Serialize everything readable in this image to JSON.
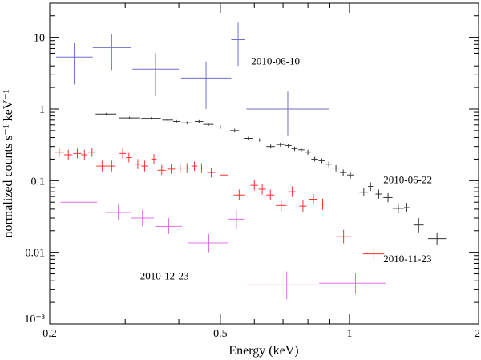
{
  "chart_data": {
    "type": "scatter",
    "xscale": "log",
    "yscale": "log",
    "xlim": [
      0.2,
      2
    ],
    "ylim": [
      0.001,
      30
    ],
    "xlabel": "Energy (keV)",
    "ylabel": "normalized counts s⁻¹ keV⁻¹",
    "xticks": [
      {
        "value": 0.2,
        "label": "0.2"
      },
      {
        "value": 0.5,
        "label": "0.5"
      },
      {
        "value": 1,
        "label": "1"
      },
      {
        "value": 2,
        "label": "2"
      }
    ],
    "yticks": [
      {
        "value": 0.001,
        "label": "10⁻³"
      },
      {
        "value": 0.01,
        "label": "0.01"
      },
      {
        "value": 0.1,
        "label": "0.1"
      },
      {
        "value": 1,
        "label": "1"
      },
      {
        "value": 10,
        "label": "10"
      }
    ],
    "series": [
      {
        "name": "2010-06-10",
        "color": "#6f6fc8",
        "points": [
          {
            "x": 0.228,
            "xlo": 0.207,
            "xhi": 0.252,
            "y": 5.3,
            "ylo": 2.2,
            "yhi": 8.3
          },
          {
            "x": 0.279,
            "xlo": 0.252,
            "xhi": 0.31,
            "y": 7.2,
            "ylo": 3.5,
            "yhi": 11.0
          },
          {
            "x": 0.353,
            "xlo": 0.312,
            "xhi": 0.4,
            "y": 3.6,
            "ylo": 1.5,
            "yhi": 6.0
          },
          {
            "x": 0.463,
            "xlo": 0.405,
            "xhi": 0.53,
            "y": 2.7,
            "ylo": 1.0,
            "yhi": 4.6
          },
          {
            "x": 0.55,
            "xlo": 0.53,
            "xhi": 0.57,
            "y": 9.3,
            "ylo": 4.0,
            "yhi": 16.0
          },
          {
            "x": 0.718,
            "xlo": 0.575,
            "xhi": 0.898,
            "y": 1.0,
            "ylo": 0.43,
            "yhi": 1.75
          }
        ]
      },
      {
        "name": "2010-06-22",
        "color": "#333333",
        "points": [
          {
            "x": 0.271,
            "xlo": 0.256,
            "xhi": 0.286,
            "y": 0.85,
            "ylo": 0.82,
            "yhi": 0.88
          },
          {
            "x": 0.307,
            "xlo": 0.29,
            "xhi": 0.325,
            "y": 0.75,
            "ylo": 0.72,
            "yhi": 0.78
          },
          {
            "x": 0.345,
            "xlo": 0.327,
            "xhi": 0.363,
            "y": 0.74,
            "ylo": 0.71,
            "yhi": 0.77
          },
          {
            "x": 0.377,
            "xlo": 0.366,
            "xhi": 0.388,
            "y": 0.7,
            "ylo": 0.67,
            "yhi": 0.73
          },
          {
            "x": 0.395,
            "xlo": 0.388,
            "xhi": 0.402,
            "y": 0.67,
            "ylo": 0.64,
            "yhi": 0.7
          },
          {
            "x": 0.418,
            "xlo": 0.405,
            "xhi": 0.431,
            "y": 0.64,
            "ylo": 0.61,
            "yhi": 0.67
          },
          {
            "x": 0.446,
            "xlo": 0.436,
            "xhi": 0.456,
            "y": 0.67,
            "ylo": 0.64,
            "yhi": 0.7
          },
          {
            "x": 0.469,
            "xlo": 0.456,
            "xhi": 0.482,
            "y": 0.61,
            "ylo": 0.58,
            "yhi": 0.64
          },
          {
            "x": 0.5,
            "xlo": 0.488,
            "xhi": 0.512,
            "y": 0.56,
            "ylo": 0.53,
            "yhi": 0.59
          },
          {
            "x": 0.54,
            "xlo": 0.527,
            "xhi": 0.553,
            "y": 0.5,
            "ylo": 0.47,
            "yhi": 0.53
          },
          {
            "x": 0.581,
            "xlo": 0.567,
            "xhi": 0.595,
            "y": 0.39,
            "ylo": 0.37,
            "yhi": 0.41
          },
          {
            "x": 0.617,
            "xlo": 0.603,
            "xhi": 0.631,
            "y": 0.37,
            "ylo": 0.35,
            "yhi": 0.39
          },
          {
            "x": 0.655,
            "xlo": 0.64,
            "xhi": 0.67,
            "y": 0.3,
            "ylo": 0.28,
            "yhi": 0.32
          },
          {
            "x": 0.69,
            "xlo": 0.675,
            "xhi": 0.705,
            "y": 0.32,
            "ylo": 0.3,
            "yhi": 0.34
          },
          {
            "x": 0.72,
            "xlo": 0.707,
            "xhi": 0.733,
            "y": 0.31,
            "ylo": 0.29,
            "yhi": 0.33
          },
          {
            "x": 0.745,
            "xlo": 0.733,
            "xhi": 0.757,
            "y": 0.28,
            "ylo": 0.26,
            "yhi": 0.3
          },
          {
            "x": 0.772,
            "xlo": 0.76,
            "xhi": 0.785,
            "y": 0.27,
            "ylo": 0.25,
            "yhi": 0.29
          },
          {
            "x": 0.8,
            "xlo": 0.787,
            "xhi": 0.813,
            "y": 0.25,
            "ylo": 0.23,
            "yhi": 0.27
          },
          {
            "x": 0.83,
            "xlo": 0.815,
            "xhi": 0.845,
            "y": 0.2,
            "ylo": 0.185,
            "yhi": 0.215
          },
          {
            "x": 0.862,
            "xlo": 0.847,
            "xhi": 0.877,
            "y": 0.19,
            "ylo": 0.175,
            "yhi": 0.205
          },
          {
            "x": 0.895,
            "xlo": 0.88,
            "xhi": 0.91,
            "y": 0.17,
            "ylo": 0.155,
            "yhi": 0.185
          },
          {
            "x": 0.93,
            "xlo": 0.914,
            "xhi": 0.946,
            "y": 0.15,
            "ylo": 0.135,
            "yhi": 0.165
          },
          {
            "x": 0.967,
            "xlo": 0.95,
            "xhi": 0.984,
            "y": 0.13,
            "ylo": 0.117,
            "yhi": 0.143
          },
          {
            "x": 1.005,
            "xlo": 0.988,
            "xhi": 1.022,
            "y": 0.12,
            "ylo": 0.107,
            "yhi": 0.133
          },
          {
            "x": 1.08,
            "xlo": 1.055,
            "xhi": 1.105,
            "y": 0.069,
            "ylo": 0.061,
            "yhi": 0.078
          },
          {
            "x": 1.12,
            "xlo": 1.105,
            "xhi": 1.135,
            "y": 0.083,
            "ylo": 0.072,
            "yhi": 0.095
          },
          {
            "x": 1.17,
            "xlo": 1.15,
            "xhi": 1.19,
            "y": 0.065,
            "ylo": 0.056,
            "yhi": 0.075
          },
          {
            "x": 1.23,
            "xlo": 1.2,
            "xhi": 1.26,
            "y": 0.058,
            "ylo": 0.05,
            "yhi": 0.067
          },
          {
            "x": 1.3,
            "xlo": 1.262,
            "xhi": 1.34,
            "y": 0.041,
            "ylo": 0.035,
            "yhi": 0.048
          },
          {
            "x": 1.36,
            "xlo": 1.34,
            "xhi": 1.38,
            "y": 0.042,
            "ylo": 0.036,
            "yhi": 0.049
          },
          {
            "x": 1.45,
            "xlo": 1.41,
            "xhi": 1.49,
            "y": 0.024,
            "ylo": 0.019,
            "yhi": 0.03
          },
          {
            "x": 1.6,
            "xlo": 1.525,
            "xhi": 1.68,
            "y": 0.0155,
            "ylo": 0.0125,
            "yhi": 0.019
          }
        ]
      },
      {
        "name": "2010-11-23",
        "color": "#ff3030",
        "points": [
          {
            "x": 0.2105,
            "xlo": 0.205,
            "xhi": 0.216,
            "y": 0.25,
            "ylo": 0.215,
            "yhi": 0.29
          },
          {
            "x": 0.221,
            "xlo": 0.216,
            "xhi": 0.226,
            "y": 0.23,
            "ylo": 0.195,
            "yhi": 0.27
          },
          {
            "x": 0.232,
            "xlo": 0.227,
            "xhi": 0.237,
            "y": 0.24,
            "ylo": 0.205,
            "yhi": 0.28
          },
          {
            "x": 0.241,
            "xlo": 0.237,
            "xhi": 0.245,
            "y": 0.23,
            "ylo": 0.195,
            "yhi": 0.27
          },
          {
            "x": 0.251,
            "xlo": 0.246,
            "xhi": 0.256,
            "y": 0.25,
            "ylo": 0.215,
            "yhi": 0.29
          },
          {
            "x": 0.265,
            "xlo": 0.257,
            "xhi": 0.273,
            "y": 0.16,
            "ylo": 0.135,
            "yhi": 0.19
          },
          {
            "x": 0.279,
            "xlo": 0.273,
            "xhi": 0.285,
            "y": 0.16,
            "ylo": 0.135,
            "yhi": 0.19
          },
          {
            "x": 0.296,
            "xlo": 0.291,
            "xhi": 0.301,
            "y": 0.24,
            "ylo": 0.205,
            "yhi": 0.28
          },
          {
            "x": 0.306,
            "xlo": 0.301,
            "xhi": 0.311,
            "y": 0.21,
            "ylo": 0.18,
            "yhi": 0.245
          },
          {
            "x": 0.321,
            "xlo": 0.315,
            "xhi": 0.327,
            "y": 0.17,
            "ylo": 0.145,
            "yhi": 0.2
          },
          {
            "x": 0.333,
            "xlo": 0.327,
            "xhi": 0.339,
            "y": 0.16,
            "ylo": 0.135,
            "yhi": 0.19
          },
          {
            "x": 0.35,
            "xlo": 0.345,
            "xhi": 0.355,
            "y": 0.2,
            "ylo": 0.17,
            "yhi": 0.235
          },
          {
            "x": 0.365,
            "xlo": 0.357,
            "xhi": 0.373,
            "y": 0.14,
            "ylo": 0.12,
            "yhi": 0.165
          },
          {
            "x": 0.384,
            "xlo": 0.376,
            "xhi": 0.392,
            "y": 0.145,
            "ylo": 0.125,
            "yhi": 0.17
          },
          {
            "x": 0.403,
            "xlo": 0.396,
            "xhi": 0.41,
            "y": 0.15,
            "ylo": 0.128,
            "yhi": 0.175
          },
          {
            "x": 0.418,
            "xlo": 0.411,
            "xhi": 0.425,
            "y": 0.15,
            "ylo": 0.128,
            "yhi": 0.175
          },
          {
            "x": 0.435,
            "xlo": 0.428,
            "xhi": 0.442,
            "y": 0.16,
            "ylo": 0.137,
            "yhi": 0.185
          },
          {
            "x": 0.452,
            "xlo": 0.445,
            "xhi": 0.459,
            "y": 0.15,
            "ylo": 0.128,
            "yhi": 0.175
          },
          {
            "x": 0.476,
            "xlo": 0.466,
            "xhi": 0.486,
            "y": 0.13,
            "ylo": 0.111,
            "yhi": 0.152
          },
          {
            "x": 0.51,
            "xlo": 0.499,
            "xhi": 0.521,
            "y": 0.12,
            "ylo": 0.102,
            "yhi": 0.14
          },
          {
            "x": 0.553,
            "xlo": 0.537,
            "xhi": 0.57,
            "y": 0.063,
            "ylo": 0.053,
            "yhi": 0.075
          },
          {
            "x": 0.6,
            "xlo": 0.588,
            "xhi": 0.612,
            "y": 0.086,
            "ylo": 0.073,
            "yhi": 0.101
          },
          {
            "x": 0.626,
            "xlo": 0.614,
            "xhi": 0.638,
            "y": 0.076,
            "ylo": 0.064,
            "yhi": 0.09
          },
          {
            "x": 0.654,
            "xlo": 0.64,
            "xhi": 0.668,
            "y": 0.063,
            "ylo": 0.053,
            "yhi": 0.075
          },
          {
            "x": 0.693,
            "xlo": 0.673,
            "xhi": 0.713,
            "y": 0.045,
            "ylo": 0.037,
            "yhi": 0.055
          },
          {
            "x": 0.735,
            "xlo": 0.72,
            "xhi": 0.75,
            "y": 0.07,
            "ylo": 0.059,
            "yhi": 0.083
          },
          {
            "x": 0.779,
            "xlo": 0.764,
            "xhi": 0.794,
            "y": 0.044,
            "ylo": 0.036,
            "yhi": 0.053
          },
          {
            "x": 0.824,
            "xlo": 0.806,
            "xhi": 0.842,
            "y": 0.055,
            "ylo": 0.046,
            "yhi": 0.065
          },
          {
            "x": 0.866,
            "xlo": 0.85,
            "xhi": 0.882,
            "y": 0.047,
            "ylo": 0.039,
            "yhi": 0.056
          },
          {
            "x": 0.969,
            "xlo": 0.928,
            "xhi": 1.01,
            "y": 0.0165,
            "ylo": 0.0133,
            "yhi": 0.0205
          },
          {
            "x": 1.14,
            "xlo": 1.075,
            "xhi": 1.205,
            "y": 0.0095,
            "ylo": 0.0075,
            "yhi": 0.012
          }
        ]
      },
      {
        "name": "2010-12-23",
        "color": "#e070e8",
        "points": [
          {
            "x": 0.234,
            "xlo": 0.212,
            "xhi": 0.258,
            "y": 0.05,
            "ylo": 0.042,
            "yhi": 0.06
          },
          {
            "x": 0.289,
            "xlo": 0.27,
            "xhi": 0.309,
            "y": 0.036,
            "ylo": 0.028,
            "yhi": 0.046
          },
          {
            "x": 0.329,
            "xlo": 0.309,
            "xhi": 0.35,
            "y": 0.03,
            "ylo": 0.023,
            "yhi": 0.039
          },
          {
            "x": 0.379,
            "xlo": 0.352,
            "xhi": 0.407,
            "y": 0.023,
            "ylo": 0.018,
            "yhi": 0.03
          },
          {
            "x": 0.47,
            "xlo": 0.42,
            "xhi": 0.52,
            "y": 0.0135,
            "ylo": 0.01,
            "yhi": 0.018
          },
          {
            "x": 0.545,
            "xlo": 0.522,
            "xhi": 0.568,
            "y": 0.029,
            "ylo": 0.021,
            "yhi": 0.039
          },
          {
            "x": 0.714,
            "xlo": 0.577,
            "xhi": 0.85,
            "y": 0.0035,
            "ylo": 0.0022,
            "yhi": 0.0054
          },
          {
            "x": 1.033,
            "xlo": 0.85,
            "xhi": 1.215,
            "y": 0.0037,
            "ylo": 0.0026,
            "yhi": 0.0052
          }
        ]
      }
    ],
    "annotations": [
      {
        "text": "2010-06-10",
        "x": 0.59,
        "y": 4.2
      },
      {
        "text": "2010-06-22",
        "x": 1.2,
        "y": 0.092
      },
      {
        "text": "2010-11-23",
        "x": 1.2,
        "y": 0.0073
      },
      {
        "text": "2010-12-23",
        "x": 0.325,
        "y": 0.0042
      }
    ]
  }
}
